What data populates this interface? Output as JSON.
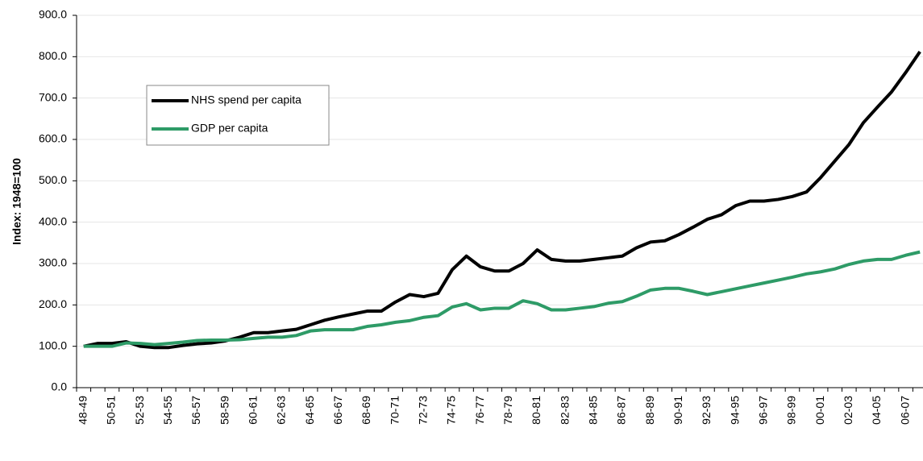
{
  "chart_data": {
    "type": "line",
    "y_label": "Index: 1948=100",
    "categories": [
      "48-49",
      null,
      "50-51",
      null,
      "52-53",
      null,
      "54-55",
      null,
      "56-57",
      null,
      "58-59",
      null,
      "60-61",
      null,
      "62-63",
      null,
      "64-65",
      null,
      "66-67",
      null,
      "68-69",
      null,
      "70-71",
      null,
      "72-73",
      null,
      "74-75",
      null,
      "76-77",
      null,
      "78-79",
      null,
      "80-81",
      null,
      "82-83",
      null,
      "84-85",
      null,
      "86-87",
      null,
      "88-89",
      null,
      "90-91",
      null,
      "92-93",
      null,
      "94-95",
      null,
      "96-97",
      null,
      "98-99",
      null,
      "00-01",
      null,
      "02-03",
      null,
      "04-05",
      null,
      "06-07",
      null
    ],
    "series": [
      {
        "name": "NHS spend per capita",
        "color": "#000000",
        "values": [
          100,
          107,
          107,
          111,
          100,
          97,
          97,
          102,
          106,
          108,
          113,
          122,
          133,
          133,
          137,
          141,
          152,
          163,
          171,
          178,
          185,
          185,
          207,
          225,
          220,
          228,
          285,
          318,
          292,
          282,
          282,
          300,
          333,
          310,
          306,
          306,
          310,
          314,
          318,
          338,
          352,
          355,
          370,
          388,
          407,
          418,
          440,
          451,
          451,
          455,
          462,
          473,
          508,
          548,
          588,
          640,
          678,
          715,
          762,
          812
        ]
      },
      {
        "name": "GDP per capita",
        "color": "#2e9b67",
        "values": [
          100,
          100,
          100,
          108,
          107,
          104,
          107,
          110,
          114,
          115,
          115,
          116,
          119,
          122,
          122,
          126,
          137,
          140,
          140,
          140,
          148,
          152,
          158,
          162,
          170,
          174,
          195,
          203,
          188,
          192,
          192,
          210,
          203,
          188,
          188,
          192,
          196,
          204,
          208,
          221,
          236,
          240,
          240,
          233,
          225,
          232,
          239,
          246,
          253,
          260,
          267,
          275,
          280,
          287,
          298,
          306,
          310,
          310,
          320,
          328
        ]
      }
    ],
    "ylim": [
      0,
      900
    ],
    "yticks": [
      {
        "value": 0,
        "label": "0.0"
      },
      {
        "value": 100,
        "label": "100.0"
      },
      {
        "value": 200,
        "label": "200.0"
      },
      {
        "value": 300,
        "label": "300.0"
      },
      {
        "value": 400,
        "label": "400.0"
      },
      {
        "value": 500,
        "label": "500.0"
      },
      {
        "value": 600,
        "label": "600.0"
      },
      {
        "value": 700,
        "label": "700.0"
      },
      {
        "value": 800,
        "label": "800.0"
      },
      {
        "value": 900,
        "label": "900.0"
      }
    ],
    "grid": true,
    "legend": "upper left"
  }
}
